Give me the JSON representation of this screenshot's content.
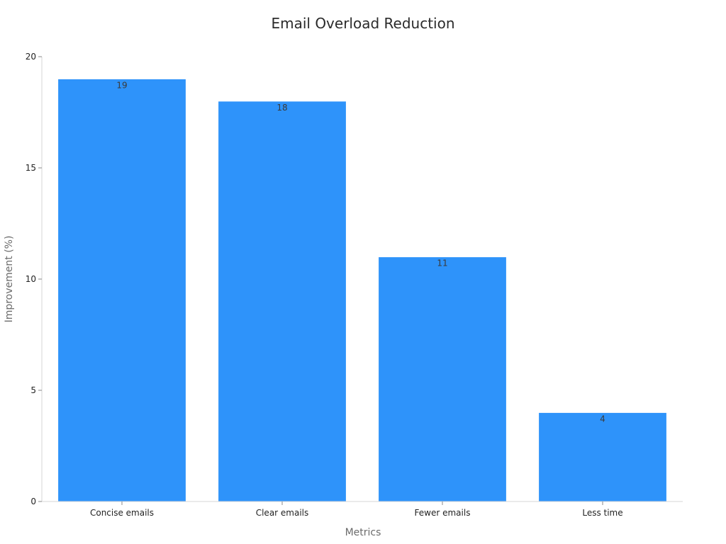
{
  "chart_data": {
    "type": "bar",
    "title": "Email Overload Reduction",
    "xlabel": "Metrics",
    "ylabel": "Improvement (%)",
    "categories": [
      "Concise emails",
      "Clear emails",
      "Fewer emails",
      "Less time"
    ],
    "values": [
      19,
      18,
      11,
      4
    ],
    "ylim": [
      0,
      20
    ],
    "yticks": [
      0,
      5,
      10,
      15,
      20
    ],
    "ytick_labels": [
      "0",
      "5",
      "10",
      "15",
      "20"
    ],
    "data_labels": [
      "19",
      "18",
      "11",
      "4"
    ],
    "grid": false,
    "legend": "none",
    "bar_color": "#2e93fa",
    "bar_edge_color": "#ffffff"
  }
}
